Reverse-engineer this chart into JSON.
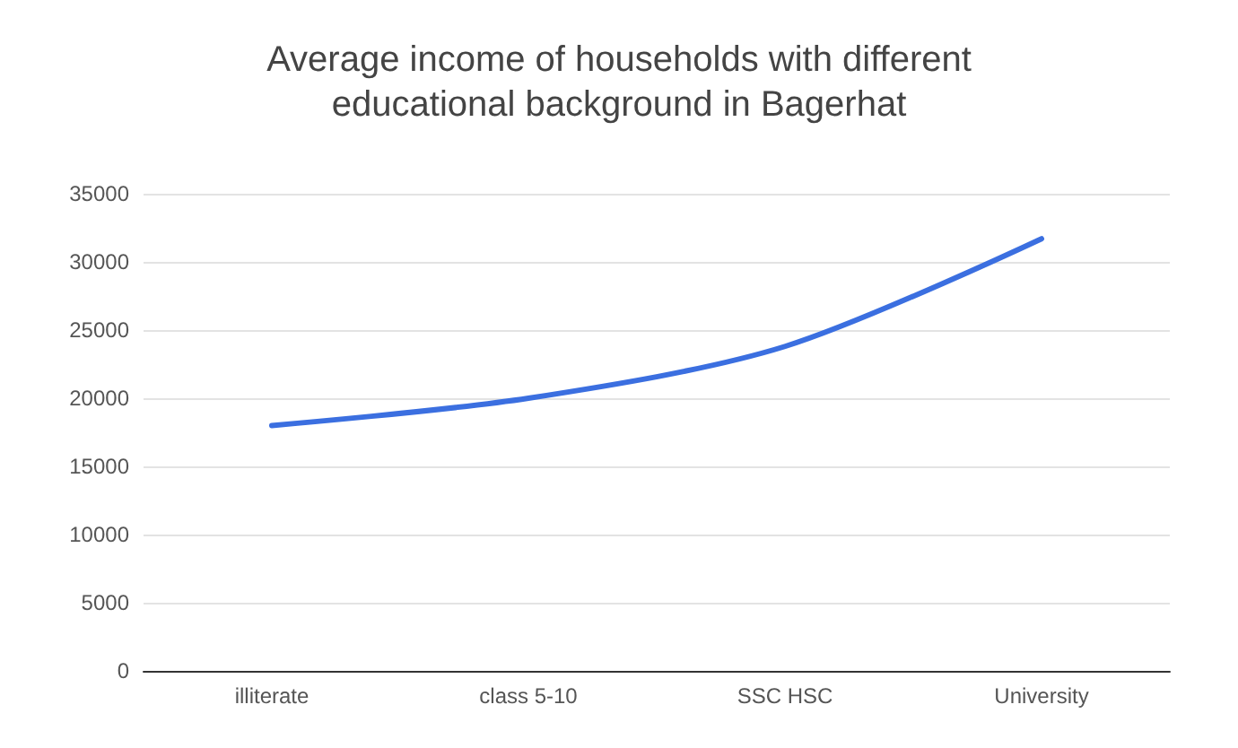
{
  "chart_data": {
    "type": "line",
    "title": "Average income of households with different\neducational background in Bagerhat",
    "categories": [
      "illiterate",
      "class 5-10",
      "SSC HSC",
      "University"
    ],
    "series": [
      {
        "color": "#3b6fe0",
        "values": [
          18000,
          20000,
          23800,
          31700
        ]
      }
    ],
    "ylim": [
      0,
      35000
    ],
    "yticks": [
      0,
      5000,
      10000,
      15000,
      20000,
      25000,
      30000,
      35000
    ],
    "grid": "y",
    "marker": "none",
    "line_style": "solid"
  }
}
